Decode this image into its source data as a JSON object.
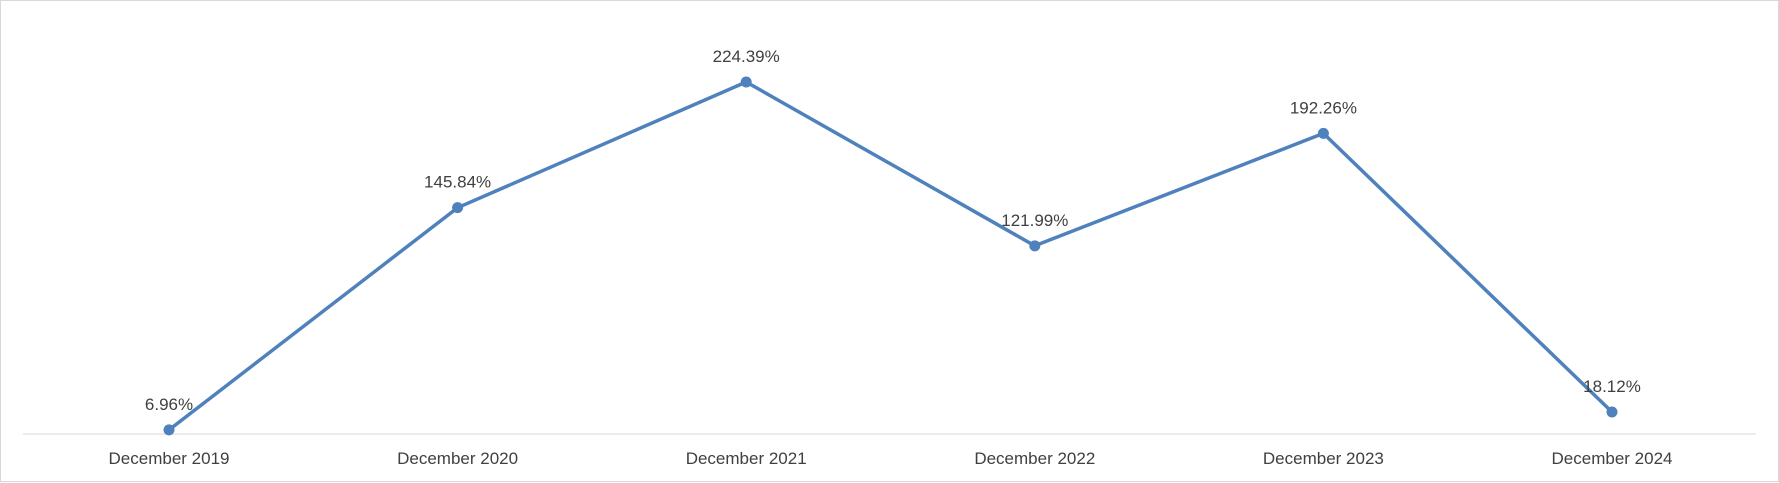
{
  "chart_data": {
    "type": "line",
    "title": "",
    "xlabel": "",
    "ylabel": "",
    "categories": [
      "December 2019",
      "December 2020",
      "December 2021",
      "December 2022",
      "December 2023",
      "December 2024"
    ],
    "series": [
      {
        "values": [
          6.96,
          145.84,
          224.39,
          121.99,
          192.26,
          18.12
        ],
        "data_labels": [
          "6.96%",
          "145.84%",
          "224.39%",
          "121.99%",
          "192.26%",
          "18.12%"
        ]
      }
    ],
    "ylim": [
      0,
      240
    ],
    "grid": false,
    "legend": "none",
    "colors": {
      "line": "#4f81bd",
      "axis": "#d9d9d9",
      "text": "#404040"
    }
  }
}
